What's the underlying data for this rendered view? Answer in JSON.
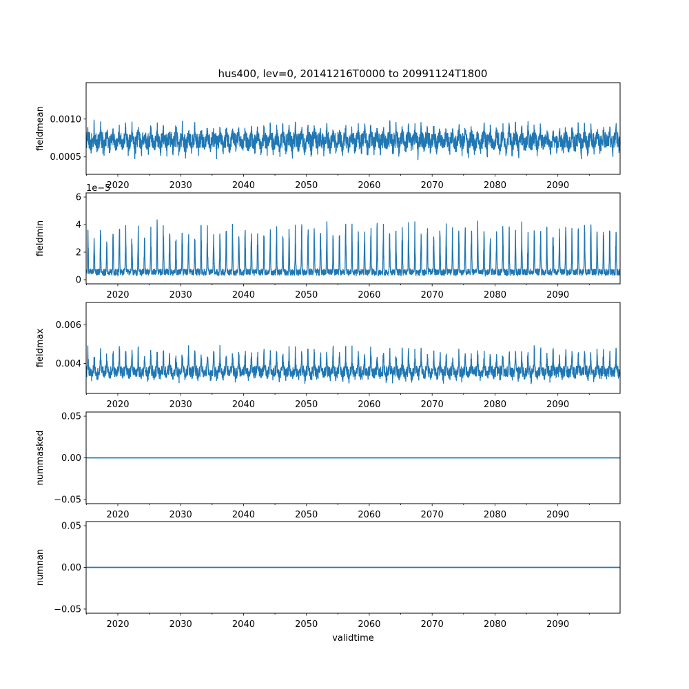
{
  "title": "hus400, lev=0, 20141216T0000 to 20991124T1800",
  "colors": {
    "line": "#1f77b4",
    "axis": "#000000",
    "background": "#ffffff"
  },
  "chart_data": [
    {
      "type": "line",
      "ylabel": "fieldmean",
      "xlabel": "",
      "xlim": [
        2014.96,
        2099.9
      ],
      "ylim": [
        0.00027,
        0.00148
      ],
      "xticks": [
        2020,
        2030,
        2040,
        2050,
        2060,
        2070,
        2080,
        2090
      ],
      "xtick_labels": [
        "2020",
        "2030",
        "2040",
        "2050",
        "2060",
        "2070",
        "2080",
        "2090"
      ],
      "yticks": [
        0.0005,
        0.001
      ],
      "ytick_labels": [
        "0.0005",
        "0.0010"
      ],
      "offset_text": "",
      "series": [
        {
          "style": "seasonal",
          "base": 0.00072,
          "noise": 0.00011,
          "amp": 0.00018,
          "dip": 0.00016
        }
      ]
    },
    {
      "type": "line",
      "ylabel": "fieldmin",
      "xlabel": "",
      "xlim": [
        2014.96,
        2099.9
      ],
      "ylim": [
        -0.3,
        6.3
      ],
      "xticks": [
        2020,
        2030,
        2040,
        2050,
        2060,
        2070,
        2080,
        2090
      ],
      "xtick_labels": [
        "2020",
        "2030",
        "2040",
        "2050",
        "2060",
        "2070",
        "2080",
        "2090"
      ],
      "yticks": [
        0,
        2,
        4,
        6
      ],
      "ytick_labels": [
        "0",
        "2",
        "4",
        "6"
      ],
      "offset_text": "1e−5",
      "series": [
        {
          "style": "spiky",
          "base": 0.3,
          "noise": 0.5,
          "amp": 3.7,
          "dip": 0
        }
      ]
    },
    {
      "type": "line",
      "ylabel": "fieldmax",
      "xlabel": "",
      "xlim": [
        2014.96,
        2099.9
      ],
      "ylim": [
        0.00245,
        0.00716
      ],
      "xticks": [
        2020,
        2030,
        2040,
        2050,
        2060,
        2070,
        2080,
        2090
      ],
      "xtick_labels": [
        "2020",
        "2030",
        "2040",
        "2050",
        "2060",
        "2070",
        "2080",
        "2090"
      ],
      "yticks": [
        0.004,
        0.006
      ],
      "ytick_labels": [
        "0.004",
        "0.006"
      ],
      "offset_text": "",
      "series": [
        {
          "style": "seasonal",
          "base": 0.0036,
          "noise": 0.0003,
          "amp": 0.0012,
          "dip": 0.0004
        }
      ]
    },
    {
      "type": "line",
      "ylabel": "nummasked",
      "xlabel": "",
      "xlim": [
        2014.96,
        2099.9
      ],
      "ylim": [
        -0.055,
        0.055
      ],
      "xticks": [
        2020,
        2030,
        2040,
        2050,
        2060,
        2070,
        2080,
        2090
      ],
      "xtick_labels": [
        "2020",
        "2030",
        "2040",
        "2050",
        "2060",
        "2070",
        "2080",
        "2090"
      ],
      "yticks": [
        -0.05,
        0.0,
        0.05
      ],
      "ytick_labels": [
        "−0.05",
        "0.00",
        "0.05"
      ],
      "offset_text": "",
      "series": [
        {
          "style": "constant",
          "value": 0
        }
      ]
    },
    {
      "type": "line",
      "ylabel": "numnan",
      "xlabel": "validtime",
      "xlim": [
        2014.96,
        2099.9
      ],
      "ylim": [
        -0.055,
        0.055
      ],
      "xticks": [
        2020,
        2030,
        2040,
        2050,
        2060,
        2070,
        2080,
        2090
      ],
      "xtick_labels": [
        "2020",
        "2030",
        "2040",
        "2050",
        "2060",
        "2070",
        "2080",
        "2090"
      ],
      "yticks": [
        -0.05,
        0.0,
        0.05
      ],
      "ytick_labels": [
        "−0.05",
        "0.00",
        "0.05"
      ],
      "offset_text": "",
      "series": [
        {
          "style": "constant",
          "value": 0
        }
      ]
    }
  ]
}
